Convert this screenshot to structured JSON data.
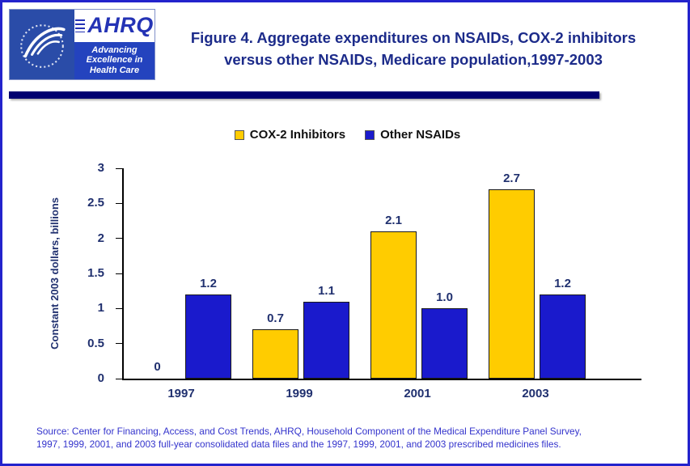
{
  "header": {
    "title_line1": "Figure 4. Aggregate expenditures on NSAIDs, COX-2 inhibitors",
    "title_line2": "versus other NSAIDs, Medicare population,1997-2003",
    "logo": {
      "ahrq": "AHRQ",
      "tagline": [
        "Advancing",
        "Excellence in",
        "Health Care"
      ]
    }
  },
  "chart_data": {
    "type": "bar",
    "title": "Figure 4. Aggregate expenditures on NSAIDs, COX-2 inhibitors versus other NSAIDs, Medicare population,1997-2003",
    "categories": [
      "1997",
      "1999",
      "2001",
      "2003"
    ],
    "series": [
      {
        "name": "COX-2 Inhibitors",
        "color": "#FFCC00",
        "values": [
          0,
          0.7,
          2.1,
          2.7
        ],
        "value_labels": [
          "0",
          "0.7",
          "2.1",
          "2.7"
        ]
      },
      {
        "name": "Other NSAIDs",
        "color": "#1A1ACC",
        "values": [
          1.2,
          1.1,
          1.0,
          1.2
        ],
        "value_labels": [
          "1.2",
          "1.1",
          "1.0",
          "1.2"
        ]
      }
    ],
    "ylabel": "Constant 2003 dollars, billions",
    "ylim": [
      0,
      3
    ],
    "yticks": [
      0,
      0.5,
      1,
      1.5,
      2,
      2.5,
      3
    ],
    "ytick_labels": [
      "0",
      "0.5",
      "1",
      "1.5",
      "2",
      "2.5",
      "3"
    ],
    "legend_position": "top",
    "grid": false
  },
  "footer": {
    "source_line1": "Source: Center for Financing, Access, and Cost Trends, AHRQ, Household Component of the Medical Expenditure Panel Survey,",
    "source_line2": "1997, 1999, 2001, and 2003 full-year consolidated data files and the 1997, 1999, 2001, and 2003 prescribed medicines files."
  },
  "colors": {
    "navy_text": "#20306F",
    "title_text": "#1C2B8A",
    "source_text": "#3333CC",
    "divider": "#000070",
    "page_border": "#2323CC",
    "cox2_yellow": "#FFCC00",
    "nsaid_blue": "#1A1ACC",
    "hhs_blue": "#2A4CA8"
  }
}
